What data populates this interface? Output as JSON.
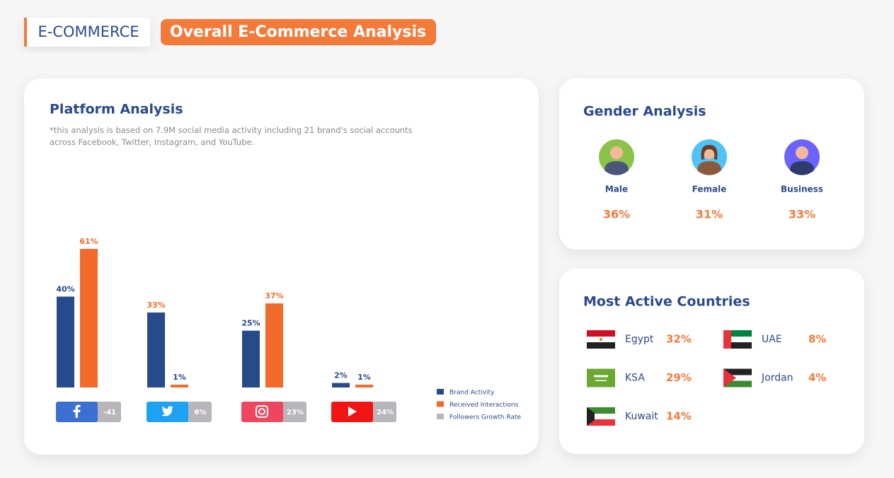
{
  "header": {
    "tag": "E-COMMERCE",
    "title": "Overall E-Commerce Analysis"
  },
  "chart_data": {
    "type": "bar",
    "title": "Platform Analysis",
    "subtitle": "*this analysis is based on 7.9M social media activity including 21 brand's social accounts across Facebook, Twitter, Instagram, and YouTube.",
    "categories": [
      null,
      null,
      null,
      null
    ],
    "series": [
      {
        "name": "Brand Activity",
        "color": "#264a8a",
        "values": [
          40,
          33,
          25,
          2
        ],
        "value_labels": [
          "40%",
          "33%",
          "25%",
          "2%"
        ]
      },
      {
        "name": "Received Interactions",
        "color": "#f26b2a",
        "values": [
          61,
          1,
          37,
          1
        ],
        "value_labels": [
          "61%",
          "1%",
          "37%",
          "1%"
        ]
      },
      {
        "name": "Followers Growth Rate",
        "color": "#b9b6bb",
        "values": [
          -41,
          6,
          23,
          24
        ],
        "value_labels": [
          "-41",
          "6%",
          "23%",
          "24%"
        ]
      }
    ]
  },
  "gender": {
    "title": "Gender Analysis",
    "items": [
      {
        "label": "Male",
        "share": "36%"
      },
      {
        "label": "Female",
        "share": "31%"
      },
      {
        "label": "Business",
        "share": "33%"
      }
    ]
  },
  "countries": {
    "title": "Most Active Countries",
    "items": [
      {
        "name": "Egypt",
        "share": "32%"
      },
      {
        "name": "UAE",
        "share": "8%"
      },
      {
        "name": "KSA",
        "share": "29%"
      },
      {
        "name": "Jordan",
        "share": "4%"
      },
      {
        "name": "Kuwait",
        "share": "14%"
      }
    ]
  }
}
